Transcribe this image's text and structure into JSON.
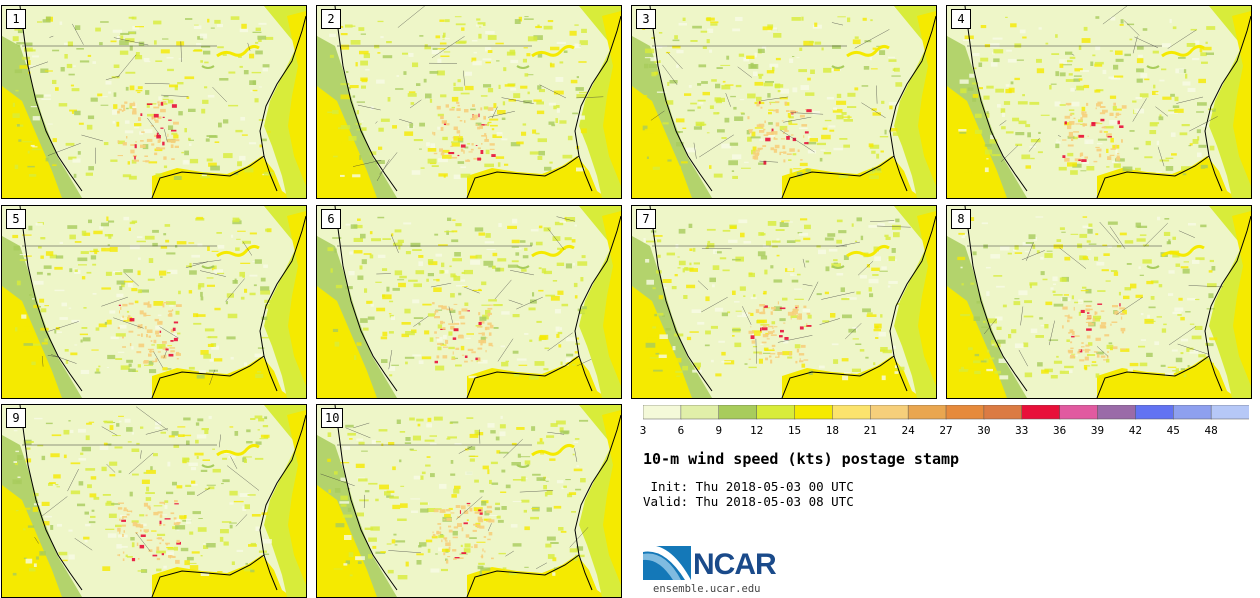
{
  "panels": [
    {
      "label": "1"
    },
    {
      "label": "2"
    },
    {
      "label": "3"
    },
    {
      "label": "4"
    },
    {
      "label": "5"
    },
    {
      "label": "6"
    },
    {
      "label": "7"
    },
    {
      "label": "8"
    },
    {
      "label": "9"
    },
    {
      "label": "10"
    }
  ],
  "colorbar": {
    "labels": [
      "3",
      "6",
      "9",
      "12",
      "15",
      "18",
      "21",
      "24",
      "27",
      "30",
      "33",
      "36",
      "39",
      "42",
      "45",
      "48"
    ],
    "colors": [
      "#f4f9d9",
      "#e1efa9",
      "#a8cc5c",
      "#d8ec3a",
      "#f5ea00",
      "#fbe36d",
      "#f6cf7b",
      "#e9a650",
      "#e68a3c",
      "#db7b43",
      "#e8103a",
      "#e15aa0",
      "#9a6ba8",
      "#6273f2",
      "#8ea0ef",
      "#b6c8f7"
    ]
  },
  "title": "10-m wind speed (kts) postage stamp",
  "init": " Init: Thu 2018-05-03 00 UTC",
  "valid": "Valid: Thu 2018-05-03 08 UTC",
  "logo": {
    "text": "NCAR",
    "url": "ensemble.ucar.edu"
  },
  "palette": {
    "land_light": "#eef6c8",
    "land_pale": "#f7fbe6",
    "green": "#a8cc5c",
    "yellow": "#f5ea00",
    "lime": "#d8ec3a",
    "orange": "#f6cf7b",
    "red": "#e8103a",
    "line": "#333333"
  }
}
